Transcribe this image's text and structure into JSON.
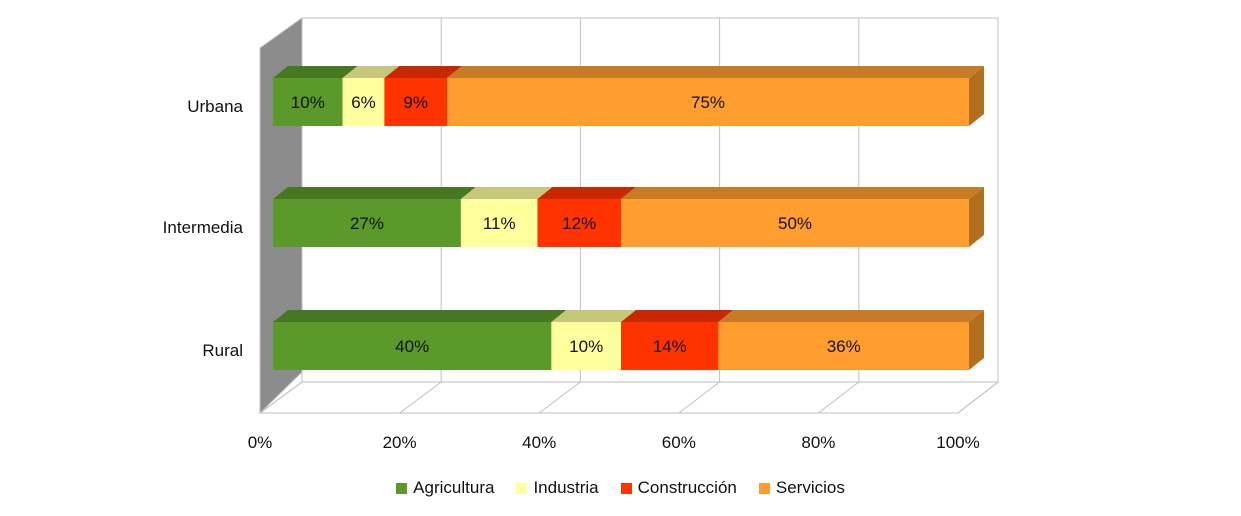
{
  "chart_data": {
    "type": "bar",
    "orientation": "horizontal",
    "stacked": "percent",
    "three_d": true,
    "categories": [
      "Urbana",
      "Intermedia",
      "Rural"
    ],
    "series": [
      {
        "name": "Agricultura",
        "color": "#5b9a2a",
        "values": [
          10,
          27,
          40
        ],
        "labels": [
          "10%",
          "27%",
          "40%"
        ]
      },
      {
        "name": "Industria",
        "color": "#ffff9e",
        "values": [
          6,
          11,
          10
        ],
        "labels": [
          "6%",
          "11%",
          "10%"
        ]
      },
      {
        "name": "Construcción",
        "color": "#ff3300",
        "values": [
          9,
          12,
          14
        ],
        "labels": [
          "9%",
          "12%",
          "14%"
        ]
      },
      {
        "name": "Servicios",
        "color": "#ff9e2e",
        "values": [
          75,
          50,
          36
        ],
        "labels": [
          "75%",
          "50%",
          "36%"
        ]
      }
    ],
    "xticks": [
      "0%",
      "20%",
      "40%",
      "60%",
      "80%",
      "100%"
    ],
    "xlim": [
      0,
      100
    ],
    "grid": true,
    "legend_position": "bottom"
  }
}
